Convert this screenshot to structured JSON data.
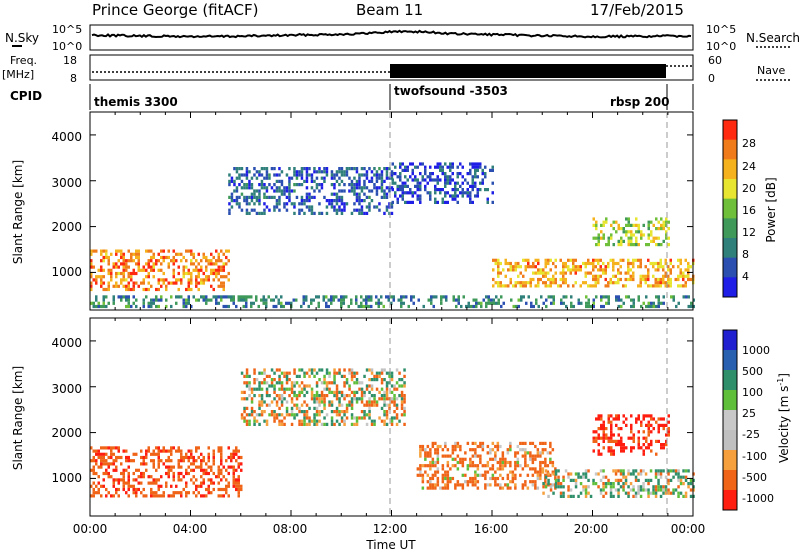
{
  "header": {
    "station": "Prince George (fitACF)",
    "beam": "Beam 11",
    "date": "17/Feb/2015"
  },
  "strip_labels": {
    "nsky": "N.Sky",
    "nsearch": "N.Search",
    "freq": "Freq.",
    "freq_unit": "[MHz]",
    "nave": "Nave",
    "cpid": "CPID",
    "nsky_ticks": [
      "10^5",
      "10^0"
    ],
    "nsearch_ticks": [
      "10^5",
      "10^0"
    ],
    "freq_ticks": [
      "18",
      "8"
    ],
    "nave_ticks": [
      "60",
      "0"
    ]
  },
  "cpid_segments": [
    {
      "label": "themis 3300"
    },
    {
      "label": "twofsound -3503"
    },
    {
      "label": "rbsp 200"
    }
  ],
  "x_axis": {
    "label": "Time UT",
    "ticks": [
      "00:00",
      "04:00",
      "08:00",
      "12:00",
      "16:00",
      "20:00",
      "00:00"
    ]
  },
  "power_panel": {
    "ylabel": "Slant Range [km]",
    "yticks": [
      "4000",
      "3000",
      "2000",
      "1000"
    ],
    "colorbar_label": "Power [dB]",
    "colorbar_ticks": [
      "28",
      "24",
      "20",
      "16",
      "12",
      "8",
      "4"
    ]
  },
  "velocity_panel": {
    "ylabel": "Slant Range [km]",
    "yticks": [
      "4000",
      "3000",
      "2000",
      "1000"
    ],
    "colorbar_label": "Velocity [m s",
    "colorbar_sup": "-1",
    "colorbar_label_end": "]",
    "colorbar_ticks": [
      "1000",
      "500",
      "100",
      "25",
      "-25",
      "-100",
      "-500",
      "-1000"
    ]
  },
  "chart_data": [
    {
      "type": "heatmap",
      "title": "",
      "xlabel": "Time UT",
      "ylabel": "Slant Range [km]",
      "x_range_hours": [
        0,
        24
      ],
      "ylim": [
        180,
        4500
      ],
      "colorbar": {
        "label": "Power [dB]",
        "min": 0,
        "max": 32,
        "colors": [
          "#1e1ee6",
          "#2a4fb0",
          "#2f7f7a",
          "#3f9a5a",
          "#6fbf3a",
          "#e7e530",
          "#f5b21c",
          "#f07b1a",
          "#ff2a10"
        ]
      },
      "regions": [
        {
          "t": [
            0.0,
            5.5
          ],
          "r": [
            650,
            1500
          ],
          "power": 26
        },
        {
          "t": [
            5.5,
            12.0
          ],
          "r": [
            2300,
            3300
          ],
          "power": 6
        },
        {
          "t": [
            12.0,
            16.0
          ],
          "r": [
            2500,
            3400
          ],
          "power": 5
        },
        {
          "t": [
            16.0,
            24.0
          ],
          "r": [
            700,
            1300
          ],
          "power": 24
        },
        {
          "t": [
            20.0,
            23.0
          ],
          "r": [
            1600,
            2200
          ],
          "power": 18
        },
        {
          "t": [
            0.0,
            24.0
          ],
          "r": [
            250,
            500
          ],
          "power": 10
        }
      ]
    },
    {
      "type": "heatmap",
      "title": "",
      "xlabel": "Time UT",
      "ylabel": "Slant Range [km]",
      "x_range_hours": [
        0,
        24
      ],
      "ylim": [
        180,
        4500
      ],
      "colorbar": {
        "label": "Velocity [m s-1]",
        "min": -1000,
        "max": 1000,
        "colors": [
          "#ff1e10",
          "#f06418",
          "#f5a03c",
          "#c0c0c0",
          "#c8c8c8",
          "#5fbf3a",
          "#2f8f6a",
          "#2a60b0",
          "#2020d0"
        ]
      },
      "regions": [
        {
          "t": [
            0.0,
            6.0
          ],
          "r": [
            600,
            1700
          ],
          "velocity": -400
        },
        {
          "t": [
            6.0,
            12.5
          ],
          "r": [
            2200,
            3400
          ],
          "velocity": 0
        },
        {
          "t": [
            13.0,
            18.5
          ],
          "r": [
            800,
            1800
          ],
          "velocity": -200
        },
        {
          "t": [
            20.0,
            23.0
          ],
          "r": [
            1500,
            2400
          ],
          "velocity": -600
        },
        {
          "t": [
            18.0,
            24.0
          ],
          "r": [
            600,
            1200
          ],
          "velocity": 50
        }
      ]
    }
  ]
}
